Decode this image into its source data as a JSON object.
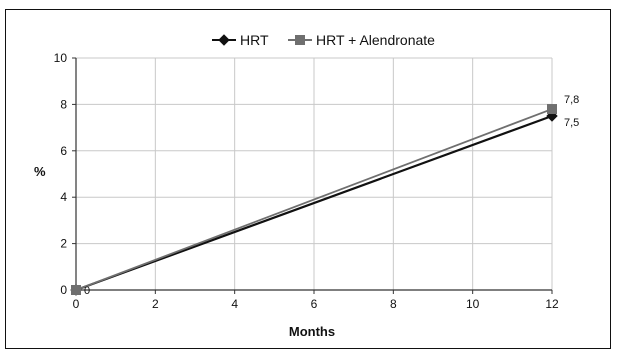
{
  "chart_data": {
    "type": "line",
    "title": "",
    "xlabel": "Months",
    "ylabel": "%",
    "xlim": [
      0,
      12
    ],
    "ylim": [
      0,
      10
    ],
    "x_ticks": [
      0,
      2,
      4,
      6,
      8,
      10,
      12
    ],
    "y_ticks": [
      0,
      2,
      4,
      6,
      8,
      10
    ],
    "grid": true,
    "legend_position": "top",
    "series": [
      {
        "name": "HRT",
        "marker": "diamond",
        "color": "#111111",
        "x": [
          0,
          12
        ],
        "y": [
          0,
          7.5
        ],
        "labels": [
          "0",
          "7,5"
        ]
      },
      {
        "name": "HRT + Alendronate",
        "marker": "square",
        "color": "#6f6f6f",
        "x": [
          0,
          12
        ],
        "y": [
          0,
          7.8
        ],
        "labels": [
          "",
          "7,8"
        ]
      }
    ]
  }
}
